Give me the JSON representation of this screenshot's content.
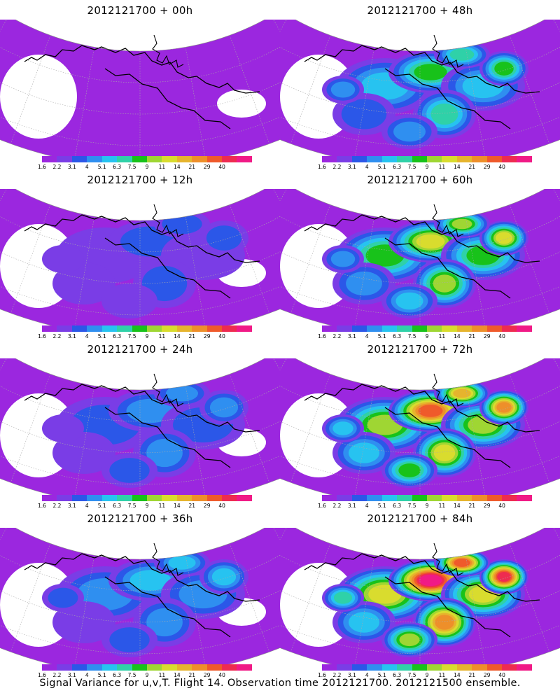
{
  "panels": [
    {
      "title": "2012121700 + 00h"
    },
    {
      "title": "2012121700 + 48h"
    },
    {
      "title": "2012121700 + 12h"
    },
    {
      "title": "2012121700 + 60h"
    },
    {
      "title": "2012121700 + 24h"
    },
    {
      "title": "2012121700 + 72h"
    },
    {
      "title": "2012121700 + 36h"
    },
    {
      "title": "2012121700 + 84h"
    }
  ],
  "colorbar": {
    "labels": [
      "1.6",
      "2.2",
      "3.1",
      "4",
      "5.1",
      "6.3",
      "7.5",
      "9",
      "11",
      "14",
      "21",
      "29",
      "40"
    ],
    "colors": [
      "#9b27df",
      "#7a3de6",
      "#2b57e8",
      "#2f8ff0",
      "#27c3f0",
      "#2fd1a8",
      "#18c21a",
      "#9fd633",
      "#d9dc2e",
      "#e6b42d",
      "#ee8f2a",
      "#ef5a2b",
      "#ee2b50",
      "#f01a86"
    ]
  },
  "caption": "Signal Variance for u,v,T. Flight 14. Observation time 2012121700. 2012121500 ensemble."
}
